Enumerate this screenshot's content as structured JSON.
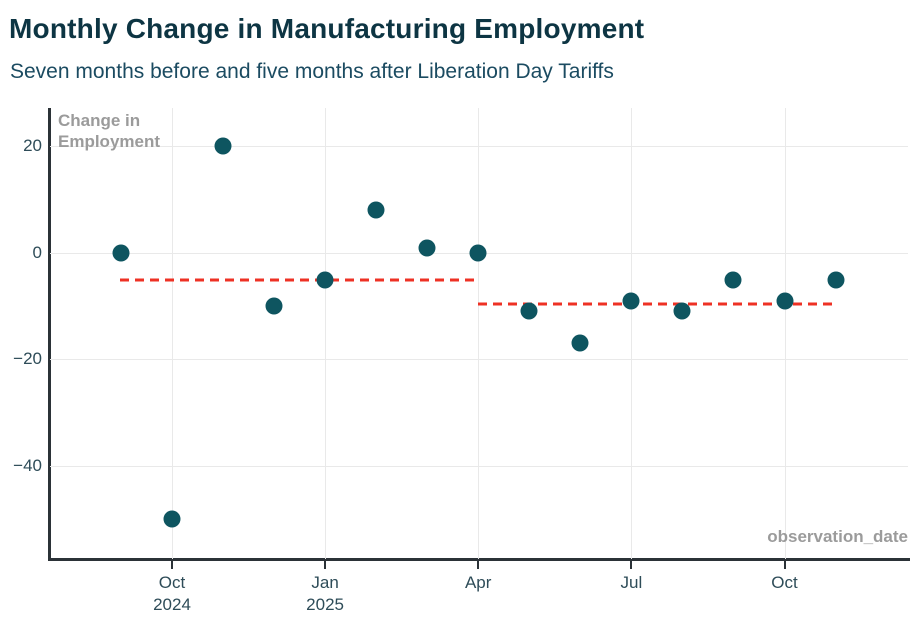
{
  "header": {
    "title": "Monthly Change in Manufacturing Employment",
    "subtitle": "Seven months before and five months after Liberation Day Tariffs"
  },
  "chart_data": {
    "type": "scatter",
    "title": "Monthly Change in Manufacturing Employment",
    "subtitle": "Seven months before and five months after Liberation Day Tariffs",
    "ylabel_lines": [
      "Change in",
      "Employment"
    ],
    "xlabel": "observation_date",
    "grid": true,
    "legend": "none",
    "ylim": [
      -57.5,
      27.2
    ],
    "xlim_month_index": [
      -1.39,
      15.42
    ],
    "y_ticks": [
      20,
      0,
      -20,
      -40
    ],
    "x_ticks": [
      {
        "month_index": 1,
        "line1": "Oct",
        "line2": "2024"
      },
      {
        "month_index": 4,
        "line1": "Jan",
        "line2": "2025"
      },
      {
        "month_index": 7,
        "line1": "Apr",
        "line2": ""
      },
      {
        "month_index": 10,
        "line1": "Jul",
        "line2": ""
      },
      {
        "month_index": 13,
        "line1": "Oct",
        "line2": ""
      }
    ],
    "points": [
      {
        "month": "Sep 2024",
        "month_index": 0,
        "value": 0
      },
      {
        "month": "Oct 2024",
        "month_index": 1,
        "value": -50
      },
      {
        "month": "Nov 2024",
        "month_index": 2,
        "value": 20
      },
      {
        "month": "Dec 2024",
        "month_index": 3,
        "value": -10
      },
      {
        "month": "Jan 2025",
        "month_index": 4,
        "value": -5
      },
      {
        "month": "Feb 2025",
        "month_index": 5,
        "value": 8
      },
      {
        "month": "Mar 2025",
        "month_index": 6,
        "value": 1
      },
      {
        "month": "Apr 2025",
        "month_index": 7,
        "value": 0
      },
      {
        "month": "May 2025",
        "month_index": 8,
        "value": -11
      },
      {
        "month": "Jun 2025",
        "month_index": 9,
        "value": -17
      },
      {
        "month": "Jul 2025",
        "month_index": 10,
        "value": -9
      },
      {
        "month": "Aug 2025",
        "month_index": 11,
        "value": -11
      },
      {
        "month": "Sep 2025",
        "month_index": 12,
        "value": -5
      },
      {
        "month": "Oct 2025",
        "month_index": 13,
        "value": -9
      },
      {
        "month": "Nov 2025",
        "month_index": 14,
        "value": -5
      }
    ],
    "mean_lines": [
      {
        "name": "pre-tariff-average",
        "from_month_index": -0.02,
        "to_month_index": 6.98,
        "value": -5.14
      },
      {
        "name": "post-tariff-average",
        "from_month_index": 7.0,
        "to_month_index": 13.93,
        "value": -9.57
      }
    ],
    "colors": {
      "title": "#0d3543",
      "subtitle": "#1b4b61",
      "point": "#0e5560",
      "mean_line": "#ee3124",
      "axis": "#2b3237",
      "gridline": "#e9e9e9",
      "tick_label": "#2e4c58",
      "axis_caption": "#9b9b9b",
      "background": "#ffffff"
    }
  }
}
